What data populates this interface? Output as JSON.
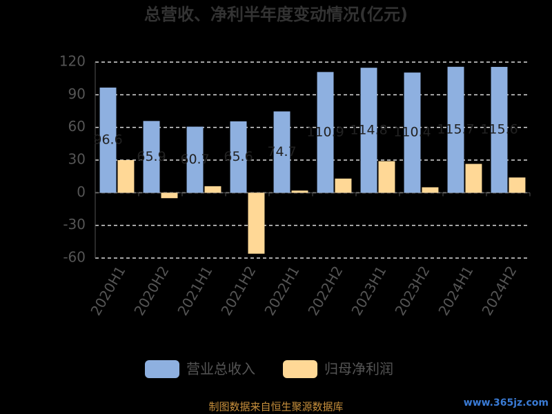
{
  "chart_data": {
    "type": "bar",
    "title": "总营收、净利半年度变动情况(亿元)",
    "categories": [
      "2020H1",
      "2020H2",
      "2021H1",
      "2021H2",
      "2022H1",
      "2022H2",
      "2023H1",
      "2023H2",
      "2024H1",
      "2024H2"
    ],
    "series": [
      {
        "name": "营业总收入",
        "color": "#8eb0e0",
        "values": [
          96.6,
          65.9,
          60.7,
          65.6,
          74.7,
          110.9,
          114.8,
          110.4,
          115.7,
          115.6
        ]
      },
      {
        "name": "归母净利润",
        "color": "#ffd896",
        "values": [
          30,
          -5,
          6,
          -56,
          2,
          13,
          29,
          5,
          26.5,
          14
        ]
      }
    ],
    "ylim": [
      -60,
      120
    ],
    "yticks": [
      -60,
      -30,
      0,
      30,
      60,
      90,
      120
    ],
    "grid": true,
    "source": "制图数据来自恒生聚源数据库",
    "watermark": "www.365jz.com"
  }
}
